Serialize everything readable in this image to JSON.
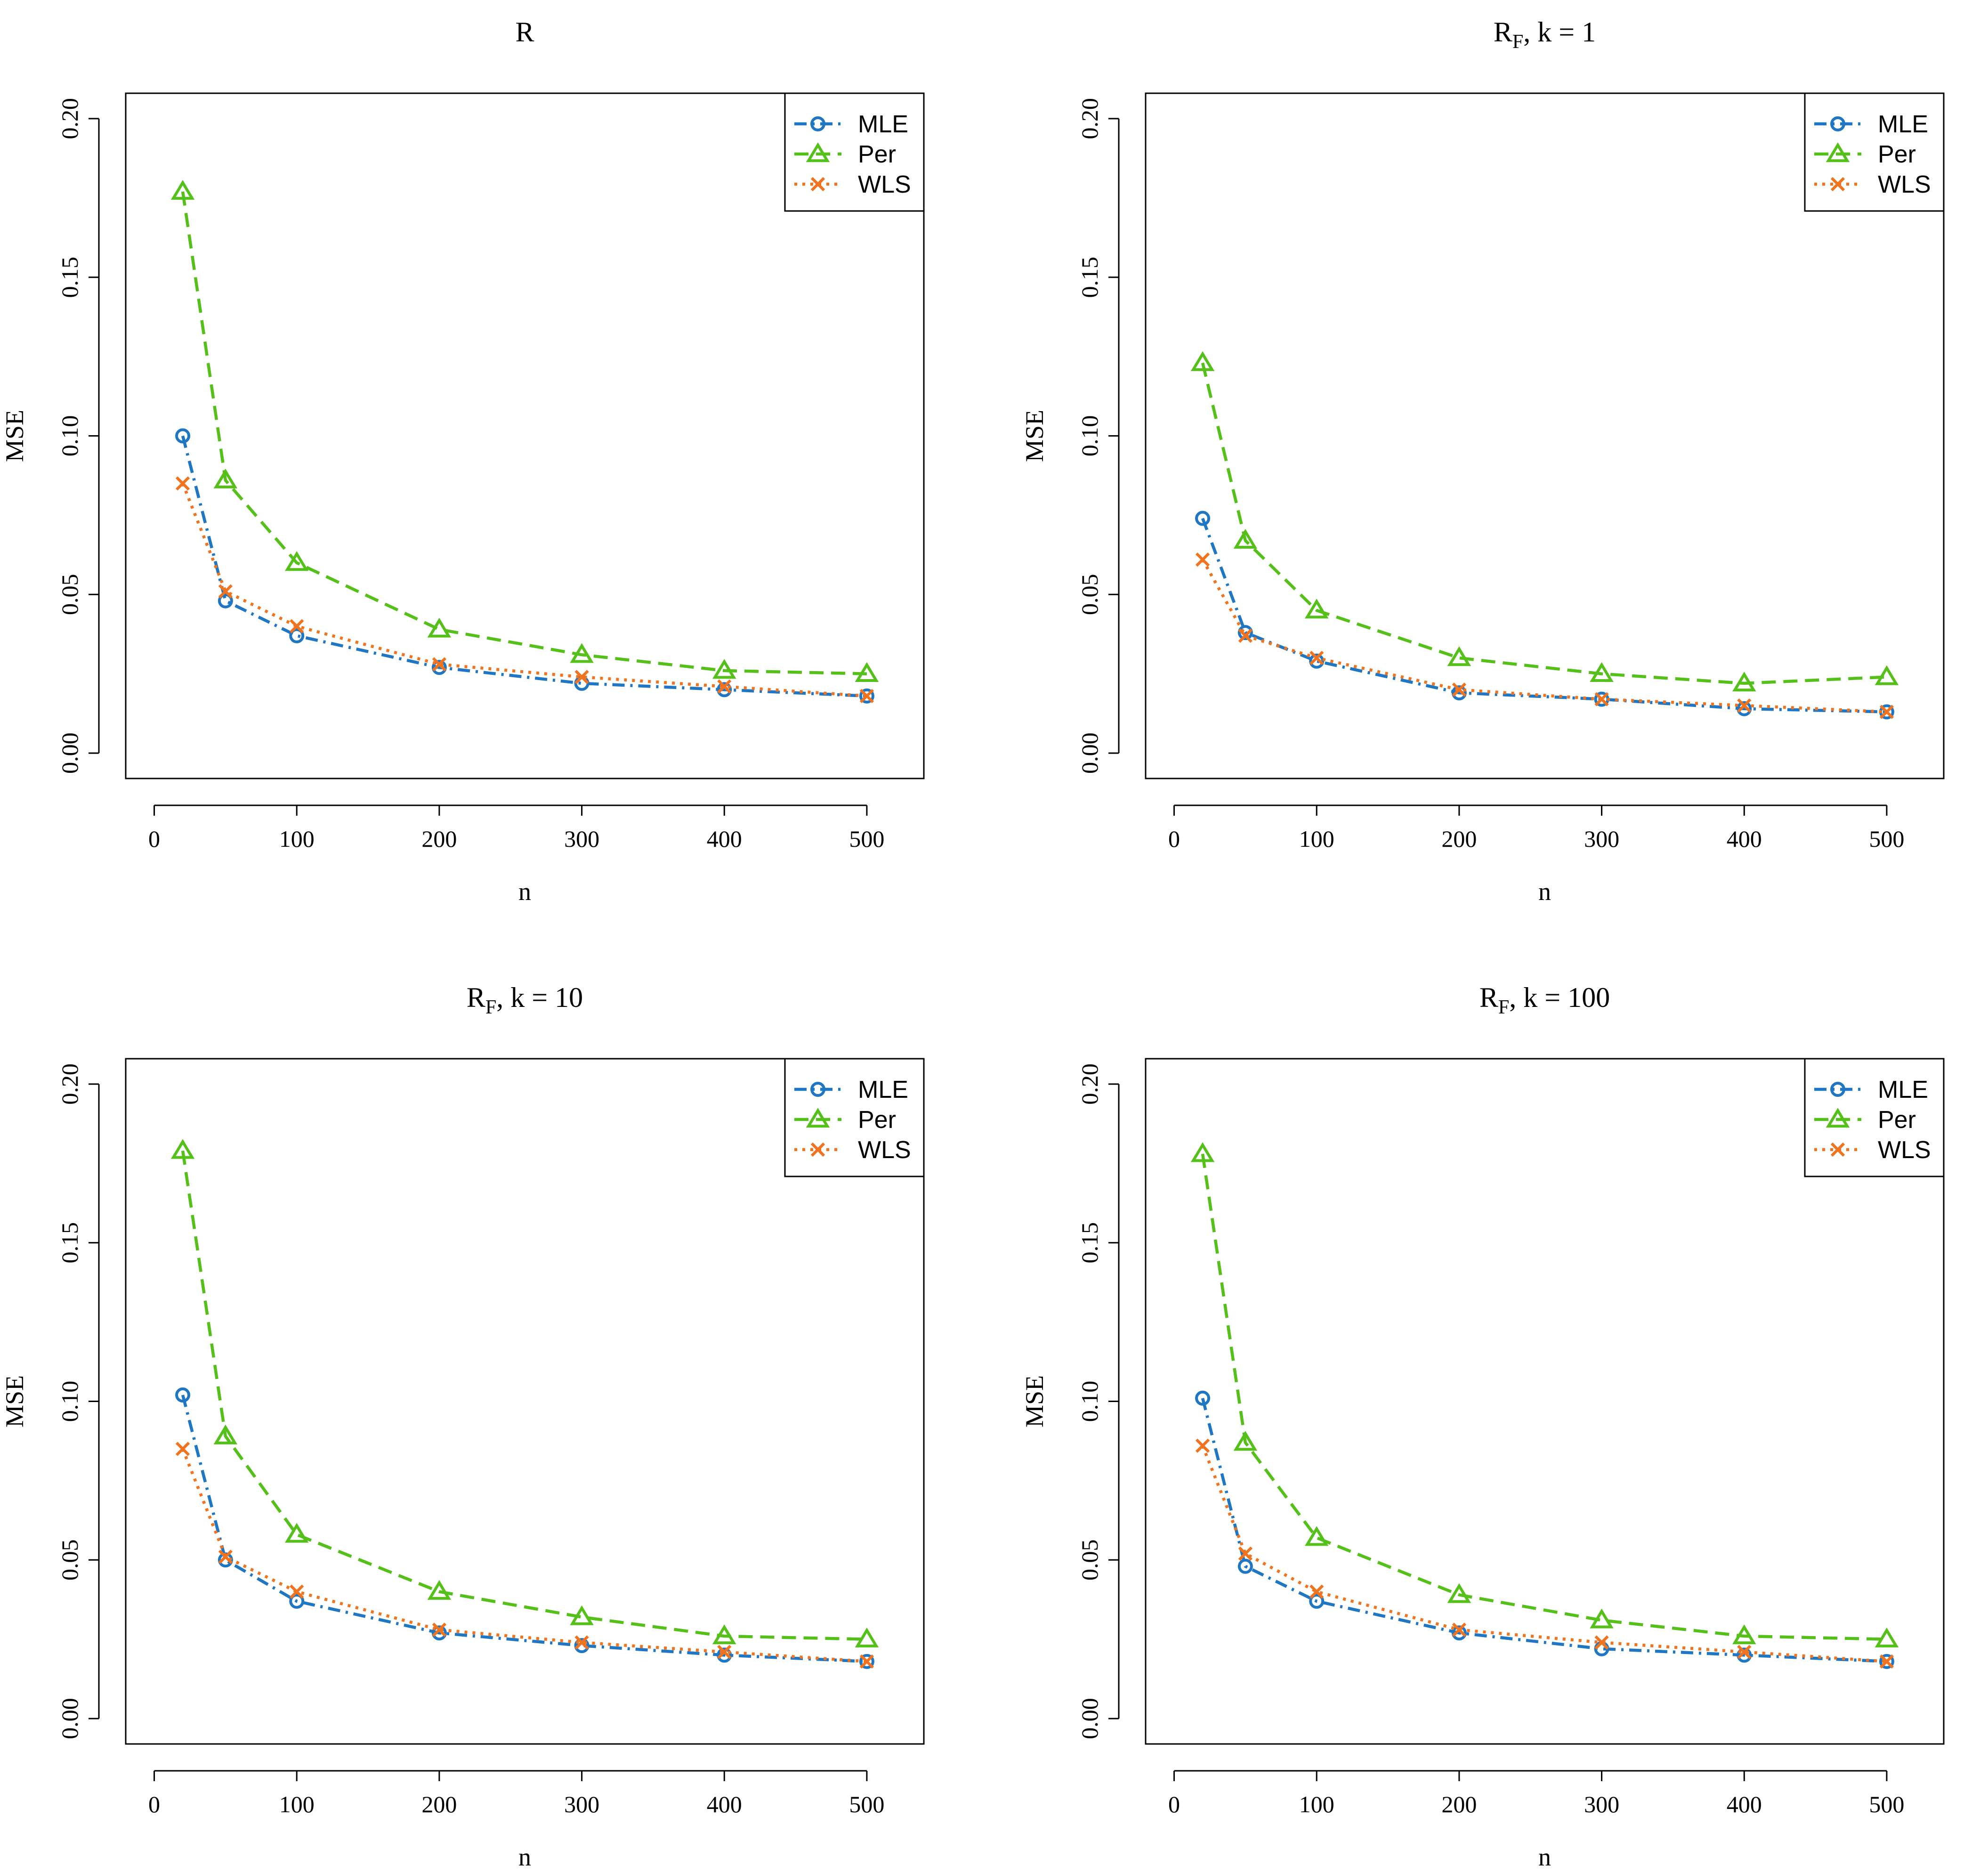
{
  "chart_data": [
    {
      "type": "line",
      "title": {
        "main": "R",
        "sub": "",
        "rest": ""
      },
      "xlabel": "n",
      "ylabel": "MSE",
      "x": [
        20,
        50,
        100,
        200,
        300,
        400,
        500
      ],
      "xlim": [
        -20,
        540
      ],
      "ylim": [
        -0.008,
        0.208
      ],
      "xticks": [
        "0",
        "100",
        "200",
        "300",
        "400",
        "500"
      ],
      "yticks": [
        "0.00",
        "0.05",
        "0.10",
        "0.15",
        "0.20"
      ],
      "legend_position": "top-right",
      "series": [
        {
          "name": "MLE",
          "color": "#1F77C4",
          "marker": "circle",
          "dash": "dashdot",
          "values": [
            0.1,
            0.048,
            0.037,
            0.027,
            0.022,
            0.02,
            0.018
          ]
        },
        {
          "name": "Per",
          "color": "#55C01A",
          "marker": "triangle",
          "dash": "dashed",
          "values": [
            0.177,
            0.086,
            0.06,
            0.039,
            0.031,
            0.026,
            0.025
          ]
        },
        {
          "name": "WLS",
          "color": "#F0741F",
          "marker": "cross",
          "dash": "dotted",
          "values": [
            0.085,
            0.051,
            0.04,
            0.028,
            0.024,
            0.021,
            0.018
          ]
        }
      ]
    },
    {
      "type": "line",
      "title": {
        "main": "R",
        "sub": "F",
        "rest": ", k = 1"
      },
      "xlabel": "n",
      "ylabel": "MSE",
      "x": [
        20,
        50,
        100,
        200,
        300,
        400,
        500
      ],
      "xlim": [
        -20,
        540
      ],
      "ylim": [
        -0.008,
        0.208
      ],
      "xticks": [
        "0",
        "100",
        "200",
        "300",
        "400",
        "500"
      ],
      "yticks": [
        "0.00",
        "0.05",
        "0.10",
        "0.15",
        "0.20"
      ],
      "legend_position": "top-right",
      "series": [
        {
          "name": "MLE",
          "color": "#1F77C4",
          "marker": "circle",
          "dash": "dashdot",
          "values": [
            0.074,
            0.038,
            0.029,
            0.019,
            0.017,
            0.014,
            0.013
          ]
        },
        {
          "name": "Per",
          "color": "#55C01A",
          "marker": "triangle",
          "dash": "dashed",
          "values": [
            0.123,
            0.067,
            0.045,
            0.03,
            0.025,
            0.022,
            0.024
          ]
        },
        {
          "name": "WLS",
          "color": "#F0741F",
          "marker": "cross",
          "dash": "dotted",
          "values": [
            0.061,
            0.037,
            0.03,
            0.02,
            0.017,
            0.015,
            0.013
          ]
        }
      ]
    },
    {
      "type": "line",
      "title": {
        "main": "R",
        "sub": "F",
        "rest": ", k = 10"
      },
      "xlabel": "n",
      "ylabel": "MSE",
      "x": [
        20,
        50,
        100,
        200,
        300,
        400,
        500
      ],
      "xlim": [
        -20,
        540
      ],
      "ylim": [
        -0.008,
        0.208
      ],
      "xticks": [
        "0",
        "100",
        "200",
        "300",
        "400",
        "500"
      ],
      "yticks": [
        "0.00",
        "0.05",
        "0.10",
        "0.15",
        "0.20"
      ],
      "legend_position": "top-right",
      "series": [
        {
          "name": "MLE",
          "color": "#1F77C4",
          "marker": "circle",
          "dash": "dashdot",
          "values": [
            0.102,
            0.05,
            0.037,
            0.027,
            0.023,
            0.02,
            0.018
          ]
        },
        {
          "name": "Per",
          "color": "#55C01A",
          "marker": "triangle",
          "dash": "dashed",
          "values": [
            0.179,
            0.089,
            0.058,
            0.04,
            0.032,
            0.026,
            0.025
          ]
        },
        {
          "name": "WLS",
          "color": "#F0741F",
          "marker": "cross",
          "dash": "dotted",
          "values": [
            0.085,
            0.051,
            0.04,
            0.028,
            0.024,
            0.021,
            0.018
          ]
        }
      ]
    },
    {
      "type": "line",
      "title": {
        "main": "R",
        "sub": "F",
        "rest": ", k = 100"
      },
      "xlabel": "n",
      "ylabel": "MSE",
      "x": [
        20,
        50,
        100,
        200,
        300,
        400,
        500
      ],
      "xlim": [
        -20,
        540
      ],
      "ylim": [
        -0.008,
        0.208
      ],
      "xticks": [
        "0",
        "100",
        "200",
        "300",
        "400",
        "500"
      ],
      "yticks": [
        "0.00",
        "0.05",
        "0.10",
        "0.15",
        "0.20"
      ],
      "legend_position": "top-right",
      "series": [
        {
          "name": "MLE",
          "color": "#1F77C4",
          "marker": "circle",
          "dash": "dashdot",
          "values": [
            0.101,
            0.048,
            0.037,
            0.027,
            0.022,
            0.02,
            0.018
          ]
        },
        {
          "name": "Per",
          "color": "#55C01A",
          "marker": "triangle",
          "dash": "dashed",
          "values": [
            0.178,
            0.087,
            0.057,
            0.039,
            0.031,
            0.026,
            0.025
          ]
        },
        {
          "name": "WLS",
          "color": "#F0741F",
          "marker": "cross",
          "dash": "dotted",
          "values": [
            0.086,
            0.052,
            0.04,
            0.028,
            0.024,
            0.021,
            0.018
          ]
        }
      ]
    }
  ]
}
